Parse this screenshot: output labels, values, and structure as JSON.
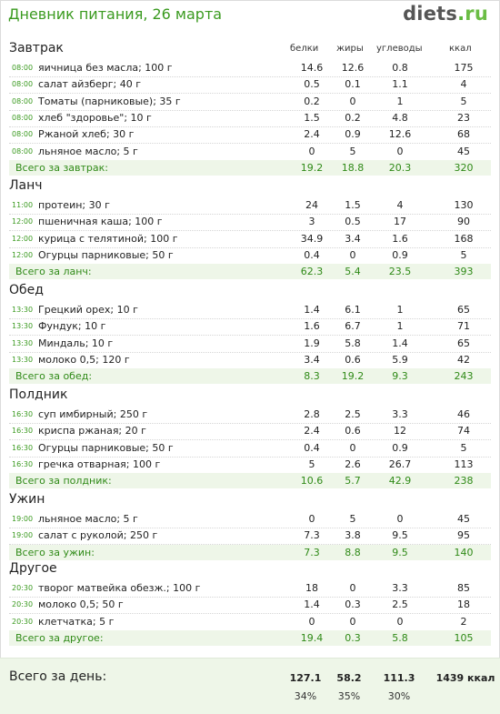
{
  "header": {
    "title": "Дневник питания, 26 марта",
    "logo_main": "diets",
    "logo_dot": ".",
    "logo_tld": "ru"
  },
  "columns": [
    "белки",
    "жиры",
    "углеводы",
    "ккал"
  ],
  "meals": [
    {
      "title": "Завтрак",
      "items": [
        {
          "time": "08:00",
          "name": "яичница без масла; 100 г",
          "p": "14.6",
          "f": "12.6",
          "c": "0.8",
          "k": "175"
        },
        {
          "time": "08:00",
          "name": "салат айзберг; 40 г",
          "p": "0.5",
          "f": "0.1",
          "c": "1.1",
          "k": "4"
        },
        {
          "time": "08:00",
          "name": "Томаты (парниковые); 35 г",
          "p": "0.2",
          "f": "0",
          "c": "1",
          "k": "5"
        },
        {
          "time": "08:00",
          "name": "хлеб \"здоровье\"; 10 г",
          "p": "1.5",
          "f": "0.2",
          "c": "4.8",
          "k": "23"
        },
        {
          "time": "08:00",
          "name": "Ржаной хлеб; 30 г",
          "p": "2.4",
          "f": "0.9",
          "c": "12.6",
          "k": "68"
        },
        {
          "time": "08:00",
          "name": "льняное масло; 5 г",
          "p": "0",
          "f": "5",
          "c": "0",
          "k": "45"
        }
      ],
      "total": {
        "label": "Всего за завтрак:",
        "p": "19.2",
        "f": "18.8",
        "c": "20.3",
        "k": "320"
      }
    },
    {
      "title": "Ланч",
      "items": [
        {
          "time": "11:00",
          "name": "протеин; 30 г",
          "p": "24",
          "f": "1.5",
          "c": "4",
          "k": "130"
        },
        {
          "time": "12:00",
          "name": "пшеничная каша; 100 г",
          "p": "3",
          "f": "0.5",
          "c": "17",
          "k": "90"
        },
        {
          "time": "12:00",
          "name": "курица с телятиной; 100 г",
          "p": "34.9",
          "f": "3.4",
          "c": "1.6",
          "k": "168"
        },
        {
          "time": "12:00",
          "name": "Огурцы парниковые; 50 г",
          "p": "0.4",
          "f": "0",
          "c": "0.9",
          "k": "5"
        }
      ],
      "total": {
        "label": "Всего за ланч:",
        "p": "62.3",
        "f": "5.4",
        "c": "23.5",
        "k": "393"
      }
    },
    {
      "title": "Обед",
      "items": [
        {
          "time": "13:30",
          "name": "Грецкий орех; 10 г",
          "p": "1.4",
          "f": "6.1",
          "c": "1",
          "k": "65"
        },
        {
          "time": "13:30",
          "name": "Фундук; 10 г",
          "p": "1.6",
          "f": "6.7",
          "c": "1",
          "k": "71"
        },
        {
          "time": "13:30",
          "name": "Миндаль; 10 г",
          "p": "1.9",
          "f": "5.8",
          "c": "1.4",
          "k": "65"
        },
        {
          "time": "13:30",
          "name": "молоко 0,5; 120 г",
          "p": "3.4",
          "f": "0.6",
          "c": "5.9",
          "k": "42"
        }
      ],
      "total": {
        "label": "Всего за обед:",
        "p": "8.3",
        "f": "19.2",
        "c": "9.3",
        "k": "243"
      }
    },
    {
      "title": "Полдник",
      "items": [
        {
          "time": "16:30",
          "name": "суп имбирный; 250 г",
          "p": "2.8",
          "f": "2.5",
          "c": "3.3",
          "k": "46"
        },
        {
          "time": "16:30",
          "name": "криспа ржаная; 20 г",
          "p": "2.4",
          "f": "0.6",
          "c": "12",
          "k": "74"
        },
        {
          "time": "16:30",
          "name": "Огурцы парниковые; 50 г",
          "p": "0.4",
          "f": "0",
          "c": "0.9",
          "k": "5"
        },
        {
          "time": "16:30",
          "name": "гречка отварная; 100 г",
          "p": "5",
          "f": "2.6",
          "c": "26.7",
          "k": "113"
        }
      ],
      "total": {
        "label": "Всего за полдник:",
        "p": "10.6",
        "f": "5.7",
        "c": "42.9",
        "k": "238"
      }
    },
    {
      "title": "Ужин",
      "items": [
        {
          "time": "19:00",
          "name": "льняное масло; 5 г",
          "p": "0",
          "f": "5",
          "c": "0",
          "k": "45"
        },
        {
          "time": "19:00",
          "name": "салат с руколой; 250 г",
          "p": "7.3",
          "f": "3.8",
          "c": "9.5",
          "k": "95"
        }
      ],
      "total": {
        "label": "Всего за ужин:",
        "p": "7.3",
        "f": "8.8",
        "c": "9.5",
        "k": "140"
      }
    },
    {
      "title": "Другое",
      "items": [
        {
          "time": "20:30",
          "name": "творог матвейка обезж.; 100 г",
          "p": "18",
          "f": "0",
          "c": "3.3",
          "k": "85"
        },
        {
          "time": "20:30",
          "name": "молоко 0,5; 50 г",
          "p": "1.4",
          "f": "0.3",
          "c": "2.5",
          "k": "18"
        },
        {
          "time": "20:30",
          "name": "клетчатка; 5 г",
          "p": "0",
          "f": "0",
          "c": "0",
          "k": "2"
        }
      ],
      "total": {
        "label": "Всего за другое:",
        "p": "19.4",
        "f": "0.3",
        "c": "5.8",
        "k": "105"
      }
    }
  ],
  "day_total": {
    "label": "Всего за день:",
    "p": "127.1",
    "f": "58.2",
    "c": "111.3",
    "k": "1439 ккал",
    "p_pct": "34%",
    "f_pct": "35%",
    "c_pct": "30%"
  },
  "colors": {
    "accent": "#3a9a1f",
    "total_bg": "#eef6e8"
  }
}
